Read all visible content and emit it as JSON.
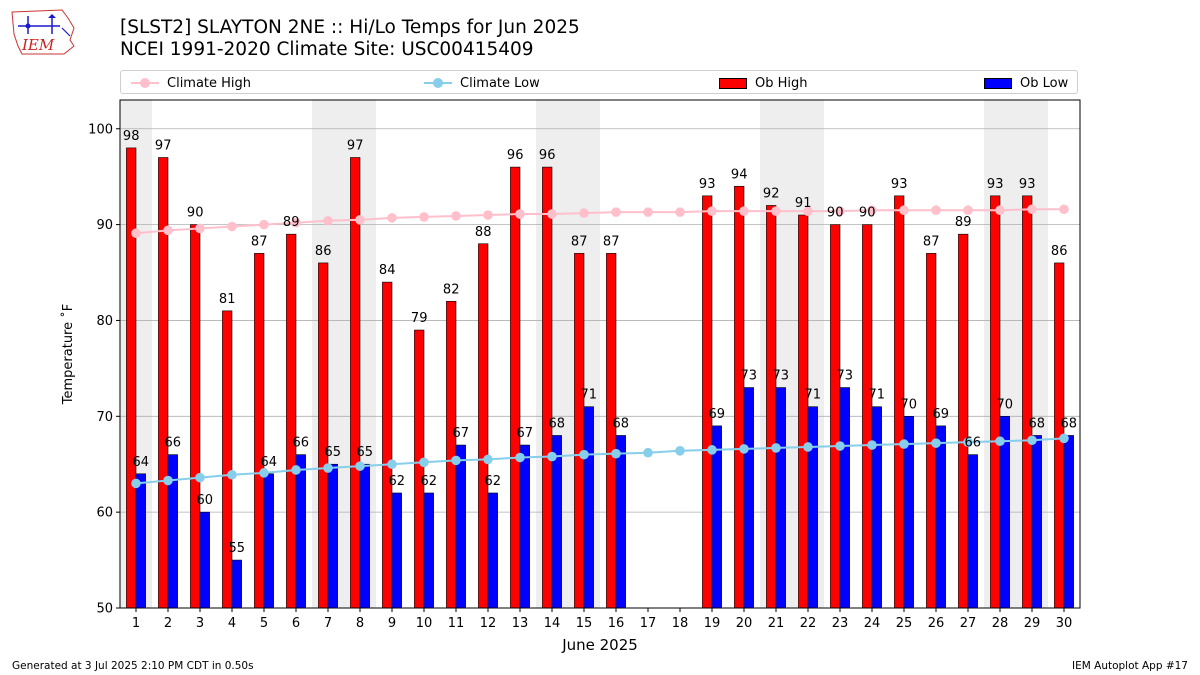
{
  "header": {
    "logo_text": "IEM",
    "title_line1": "[SLST2] SLAYTON 2NE :: Hi/Lo Temps for Jun 2025",
    "title_line2": "NCEI 1991-2020 Climate Site: USC00415409"
  },
  "legend": {
    "climate_high": "Climate High",
    "climate_low": "Climate Low",
    "ob_high": "Ob High",
    "ob_low": "Ob Low"
  },
  "footer": {
    "left": "Generated at 3 Jul 2025 2:10 PM CDT in 0.50s",
    "right": "IEM Autoplot App #17"
  },
  "colors": {
    "ob_high": "#ff0000",
    "ob_low": "#0000ff",
    "climate_high": "#ffc0cb",
    "climate_low": "#87ceeb",
    "weekend_shade": "#eeeeee",
    "grid": "#b0b0b0"
  },
  "chart_data": {
    "type": "bar",
    "title": "[SLST2] SLAYTON 2NE :: Hi/Lo Temps for Jun 2025",
    "xlabel": "June 2025",
    "ylabel": "Temperature ˚F",
    "ylim": [
      50,
      103
    ],
    "yticks": [
      50,
      60,
      70,
      80,
      90,
      100
    ],
    "grid": "horizontal",
    "legend_position": "top",
    "weekend_days": [
      1,
      7,
      8,
      14,
      15,
      21,
      22,
      28,
      29
    ],
    "categories": [
      1,
      2,
      3,
      4,
      5,
      6,
      7,
      8,
      9,
      10,
      11,
      12,
      13,
      14,
      15,
      16,
      17,
      18,
      19,
      20,
      21,
      22,
      23,
      24,
      25,
      26,
      27,
      28,
      29,
      30
    ],
    "series": [
      {
        "name": "Ob High",
        "kind": "bar",
        "values": [
          98,
          97,
          90,
          81,
          87,
          89,
          86,
          97,
          84,
          79,
          82,
          88,
          96,
          96,
          87,
          87,
          null,
          null,
          93,
          94,
          92,
          91,
          90,
          90,
          93,
          87,
          89,
          93,
          93,
          86
        ]
      },
      {
        "name": "Ob Low",
        "kind": "bar",
        "values": [
          64,
          66,
          60,
          55,
          64,
          66,
          65,
          65,
          62,
          62,
          67,
          62,
          67,
          68,
          71,
          68,
          null,
          null,
          69,
          73,
          73,
          71,
          73,
          71,
          70,
          69,
          66,
          70,
          68,
          68
        ]
      },
      {
        "name": "Climate High",
        "kind": "line",
        "values": [
          89.1,
          89.4,
          89.6,
          89.8,
          90.0,
          90.2,
          90.4,
          90.5,
          90.7,
          90.8,
          90.9,
          91.0,
          91.1,
          91.1,
          91.2,
          91.3,
          91.3,
          91.3,
          91.4,
          91.4,
          91.4,
          91.4,
          91.4,
          91.5,
          91.5,
          91.5,
          91.5,
          91.5,
          91.6,
          91.6
        ]
      },
      {
        "name": "Climate Low",
        "kind": "line",
        "values": [
          63.0,
          63.3,
          63.6,
          63.9,
          64.1,
          64.4,
          64.6,
          64.8,
          65.0,
          65.2,
          65.4,
          65.5,
          65.7,
          65.8,
          66.0,
          66.1,
          66.2,
          66.4,
          66.5,
          66.6,
          66.7,
          66.8,
          66.9,
          67.0,
          67.1,
          67.2,
          67.3,
          67.4,
          67.5,
          67.7
        ]
      }
    ]
  }
}
